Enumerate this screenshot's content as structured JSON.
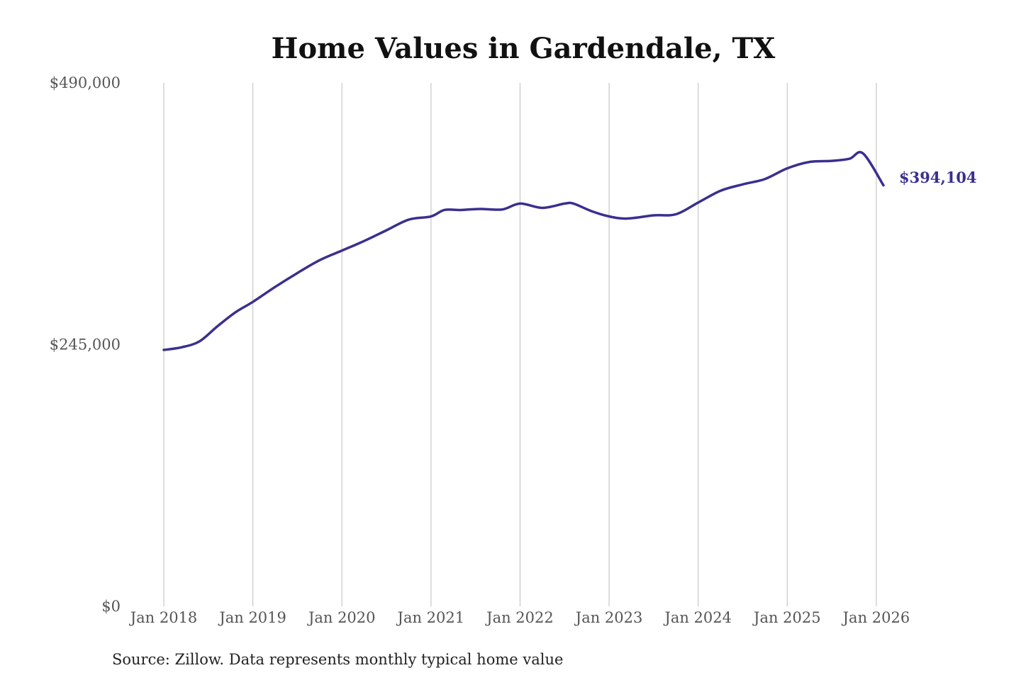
{
  "chart_data": {
    "type": "line",
    "title": "Home Values in Gardendale, TX",
    "xlabel": "",
    "ylabel": "",
    "ylim": [
      0,
      490000
    ],
    "yticks": [
      0,
      245000,
      490000
    ],
    "ytick_labels": [
      "$0",
      "$245,000",
      "$490,000"
    ],
    "xlim": [
      2018.0,
      2026.08
    ],
    "xticks": [
      2018,
      2019,
      2020,
      2021,
      2022,
      2023,
      2024,
      2025,
      2026
    ],
    "xtick_labels": [
      "Jan 2018",
      "Jan 2019",
      "Jan 2020",
      "Jan 2021",
      "Jan 2022",
      "Jan 2023",
      "Jan 2024",
      "Jan 2025",
      "Jan 2026"
    ],
    "grid": "vertical",
    "line_color": "#3a2f8f",
    "series": [
      {
        "name": "Typical home value",
        "x": [
          2018.0,
          2018.2,
          2018.4,
          2018.6,
          2018.8,
          2019.0,
          2019.25,
          2019.5,
          2019.75,
          2020.0,
          2020.25,
          2020.5,
          2020.75,
          2021.0,
          2021.15,
          2021.33,
          2021.55,
          2021.8,
          2022.0,
          2022.25,
          2022.5,
          2022.6,
          2022.8,
          2023.0,
          2023.2,
          2023.5,
          2023.75,
          2024.0,
          2024.25,
          2024.5,
          2024.75,
          2025.0,
          2025.25,
          2025.5,
          2025.7,
          2025.85,
          2026.08
        ],
        "values": [
          240000,
          242500,
          248000,
          262000,
          275000,
          285000,
          299000,
          312000,
          324000,
          333000,
          342000,
          352000,
          362000,
          365000,
          371000,
          371000,
          372000,
          371500,
          377000,
          373000,
          377000,
          377000,
          370000,
          365000,
          363000,
          366000,
          367000,
          378000,
          389000,
          395000,
          400000,
          410000,
          416000,
          417000,
          419000,
          424000,
          394104
        ]
      }
    ],
    "end_label": "$394,104"
  },
  "footer": {
    "source": "Source: Zillow. Data represents monthly typical home value"
  }
}
